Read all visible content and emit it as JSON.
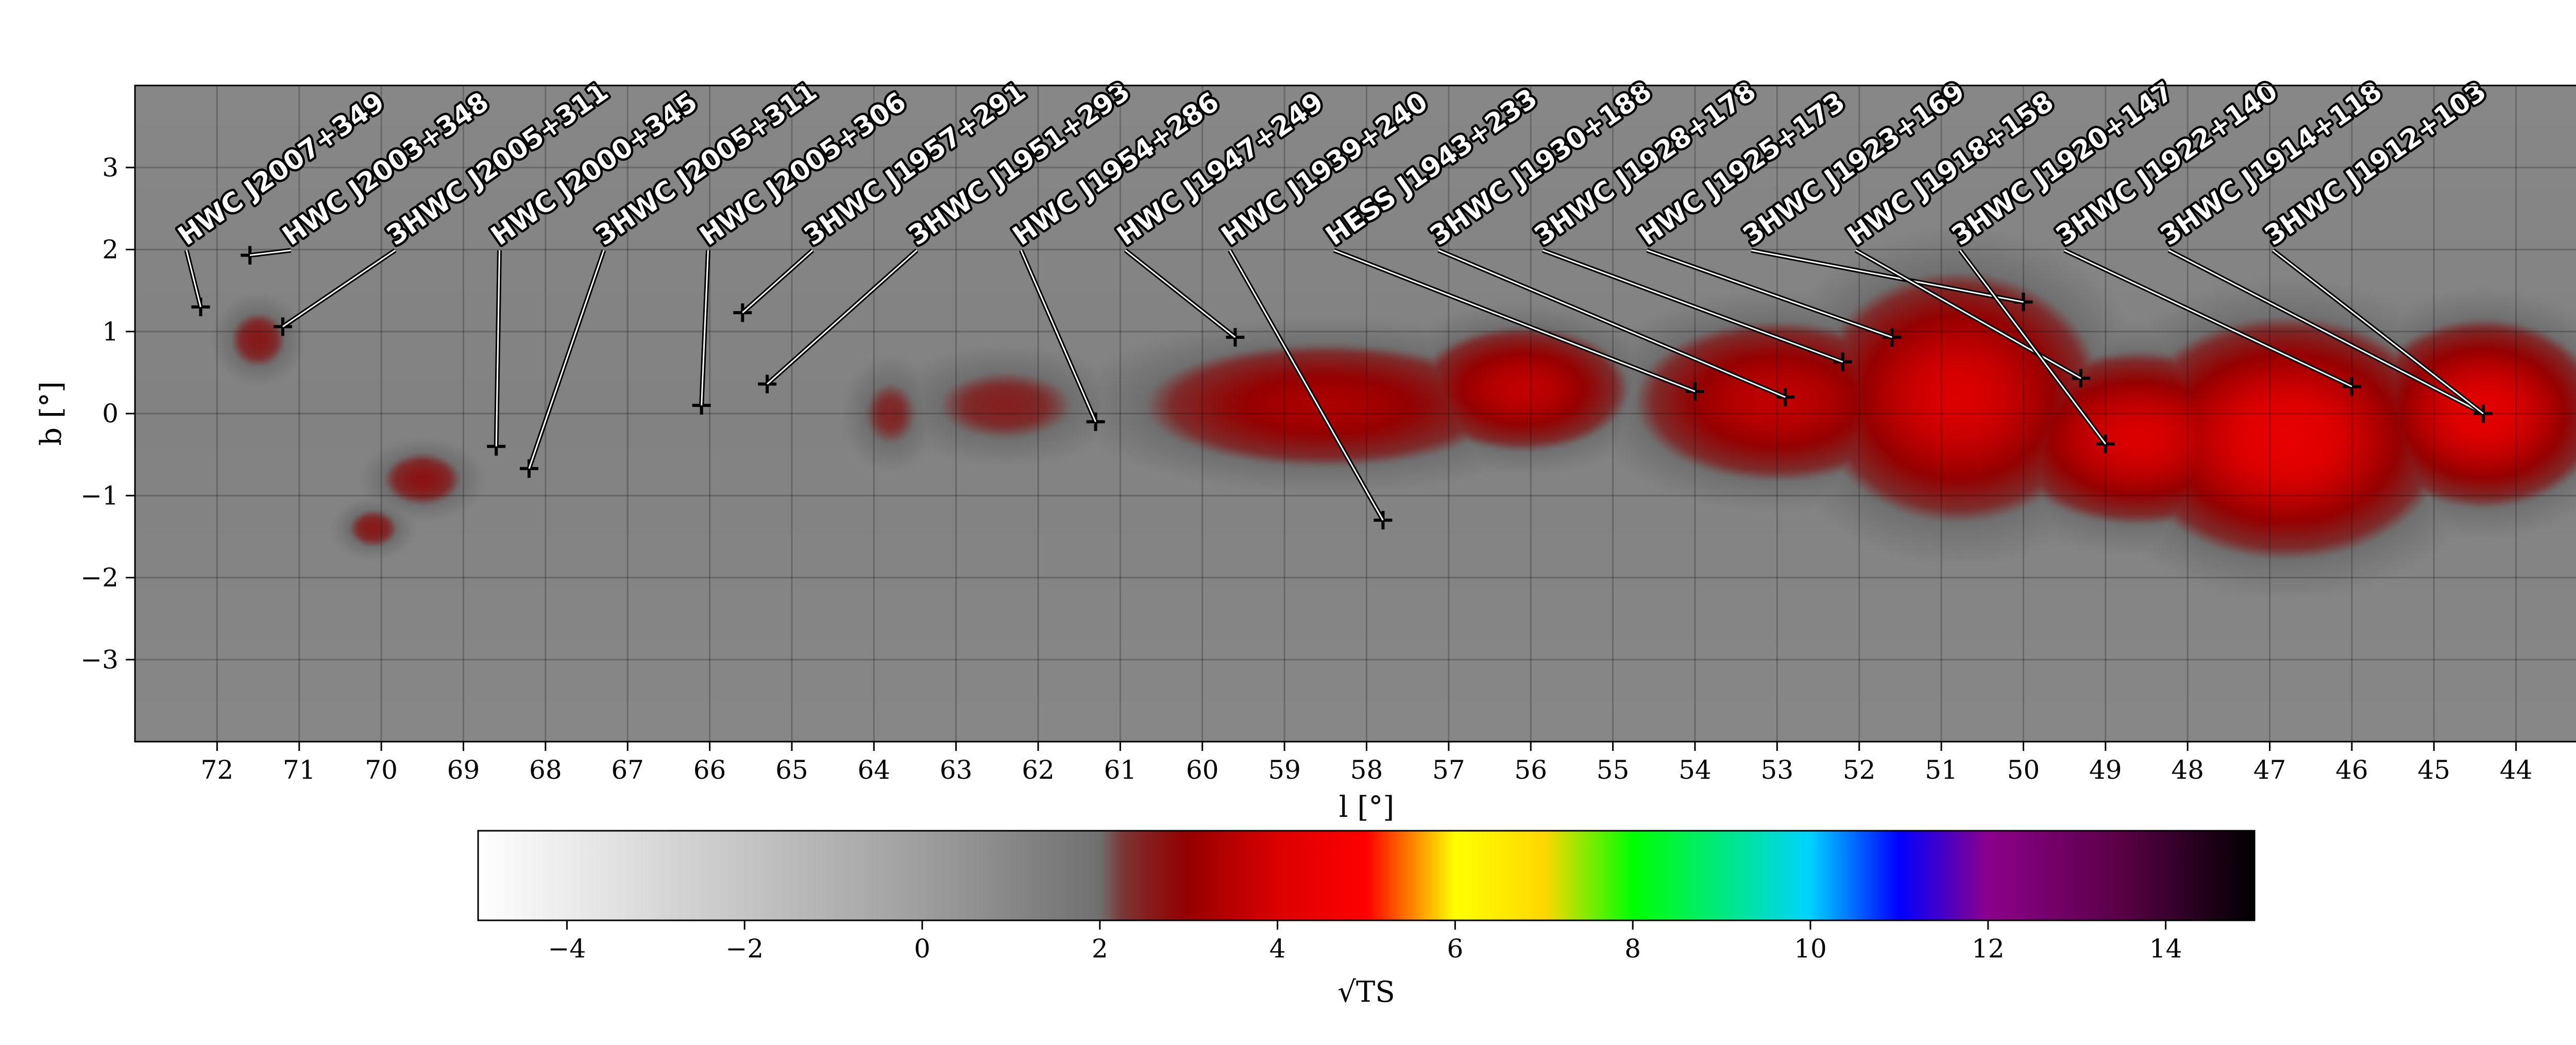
{
  "chart_data": {
    "type": "heatmap",
    "xlabel": "l [°]",
    "ylabel": "b [°]",
    "xlim": [
      73,
      43
    ],
    "ylim": [
      -4,
      4
    ],
    "x_ticks": [
      "72",
      "71",
      "70",
      "69",
      "68",
      "67",
      "66",
      "65",
      "64",
      "63",
      "62",
      "61",
      "60",
      "59",
      "58",
      "57",
      "56",
      "55",
      "54",
      "53",
      "52",
      "51",
      "50",
      "49",
      "48",
      "47",
      "46",
      "45",
      "44"
    ],
    "y_ticks": [
      "3",
      "2",
      "1",
      "0",
      "−1",
      "−2",
      "−3"
    ],
    "grid": true,
    "colorbar": {
      "label": "√TS",
      "range": [
        -5,
        15
      ],
      "ticks": [
        "−4",
        "−2",
        "0",
        "2",
        "4",
        "6",
        "8",
        "10",
        "12",
        "14"
      ],
      "colors": [
        "#ffffff",
        "#9a9a9a",
        "#6e6e6e",
        "#8b0000",
        "#ff0000",
        "#ffff00",
        "#00ff00",
        "#00ccff",
        "#0000ff",
        "#8b008b",
        "#000000"
      ]
    },
    "sources": [
      {
        "name": "HWC J2007+349",
        "l": 72.2,
        "b": 1.3
      },
      {
        "name": "HWC J2003+348",
        "l": 71.6,
        "b": 1.93
      },
      {
        "name": "3HWC J2005+311",
        "l": 71.2,
        "b": 1.06
      },
      {
        "name": "HWC J2000+345",
        "l": 68.6,
        "b": -0.4
      },
      {
        "name": "3HWC J2005+311",
        "l": 68.2,
        "b": -0.67
      },
      {
        "name": "HWC J2005+306",
        "l": 66.1,
        "b": 0.1
      },
      {
        "name": "3HWC J1957+291",
        "l": 65.6,
        "b": 1.23
      },
      {
        "name": "3HWC J1951+293",
        "l": 65.3,
        "b": 0.36
      },
      {
        "name": "HWC J1954+286",
        "l": 61.3,
        "b": -0.1
      },
      {
        "name": "HWC J1947+249",
        "l": 59.6,
        "b": 0.93
      },
      {
        "name": "HWC J1939+240",
        "l": 57.8,
        "b": -1.3
      },
      {
        "name": "HESS J1943+233",
        "l": 54.0,
        "b": 0.27
      },
      {
        "name": "3HWC J1930+188",
        "l": 52.9,
        "b": 0.2
      },
      {
        "name": "3HWC J1928+178",
        "l": 52.2,
        "b": 0.63
      },
      {
        "name": "HWC J1925+173",
        "l": 51.6,
        "b": 0.93
      },
      {
        "name": "3HWC J1923+169",
        "l": 50.0,
        "b": 1.36
      },
      {
        "name": "HWC J1918+158",
        "l": 49.3,
        "b": 0.43
      },
      {
        "name": "3HWC J1920+147",
        "l": 49.0,
        "b": -0.37
      },
      {
        "name": "3HWC J1922+140",
        "l": 46.0,
        "b": 0.33
      },
      {
        "name": "3HWC J1914+118",
        "l": 44.4,
        "b": 0.0
      },
      {
        "name": "3HWC J1912+103",
        "l": 44.4,
        "b": 0.0
      }
    ],
    "emission_blobs": [
      {
        "l": 71.5,
        "b": 0.9,
        "sigma_l": 0.45,
        "sigma_b": 0.45,
        "value": 2.6
      },
      {
        "l": 69.5,
        "b": -0.8,
        "sigma_l": 0.6,
        "sigma_b": 0.4,
        "value": 2.7
      },
      {
        "l": 70.1,
        "b": -1.4,
        "sigma_l": 0.4,
        "sigma_b": 0.3,
        "value": 2.6
      },
      {
        "l": 63.8,
        "b": 0.0,
        "sigma_l": 0.5,
        "sigma_b": 0.6,
        "value": 2.4
      },
      {
        "l": 62.4,
        "b": 0.1,
        "sigma_l": 1.2,
        "sigma_b": 0.6,
        "value": 2.5
      },
      {
        "l": 58.5,
        "b": 0.1,
        "sigma_l": 2.2,
        "sigma_b": 0.75,
        "value": 3.3
      },
      {
        "l": 56.1,
        "b": 0.3,
        "sigma_l": 1.2,
        "sigma_b": 0.7,
        "value": 3.6
      },
      {
        "l": 53.0,
        "b": 0.15,
        "sigma_l": 1.6,
        "sigma_b": 0.9,
        "value": 3.6
      },
      {
        "l": 50.8,
        "b": 0.2,
        "sigma_l": 1.5,
        "sigma_b": 1.3,
        "value": 4.0
      },
      {
        "l": 48.6,
        "b": -0.3,
        "sigma_l": 1.4,
        "sigma_b": 0.9,
        "value": 4.0
      },
      {
        "l": 46.8,
        "b": -0.3,
        "sigma_l": 1.6,
        "sigma_b": 1.2,
        "value": 4.3
      },
      {
        "l": 44.4,
        "b": 0.0,
        "sigma_l": 1.2,
        "sigma_b": 0.95,
        "value": 4.2
      }
    ]
  }
}
